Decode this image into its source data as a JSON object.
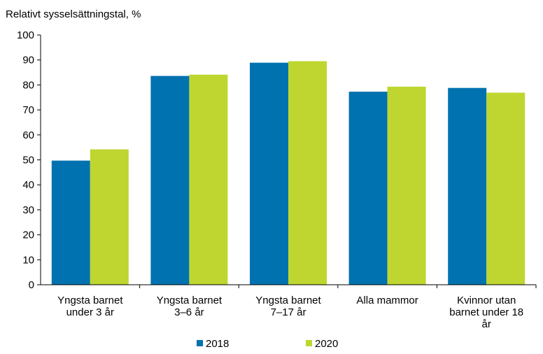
{
  "chart_data": {
    "type": "bar",
    "title": "Relativt sysselsättningstal, %",
    "categories": [
      [
        "Yngsta barnet",
        "under 3 år"
      ],
      [
        "Yngsta barnet",
        "3–6 år"
      ],
      [
        "Yngsta barnet",
        "7–17 år"
      ],
      [
        "Alla mammor"
      ],
      [
        "Kvinnor utan",
        "barnet under 18",
        "år"
      ]
    ],
    "series": [
      {
        "name": "2018",
        "color": "#0072b0",
        "values": [
          49.7,
          83.6,
          88.9,
          77.3,
          78.8
        ]
      },
      {
        "name": "2020",
        "color": "#bed62f",
        "values": [
          54.2,
          84.1,
          89.5,
          79.3,
          76.9
        ]
      }
    ],
    "yticks": [
      0,
      10,
      20,
      30,
      40,
      50,
      60,
      70,
      80,
      90,
      100
    ],
    "ylim": [
      0,
      100
    ],
    "grid": false,
    "legend_position": "bottom"
  }
}
